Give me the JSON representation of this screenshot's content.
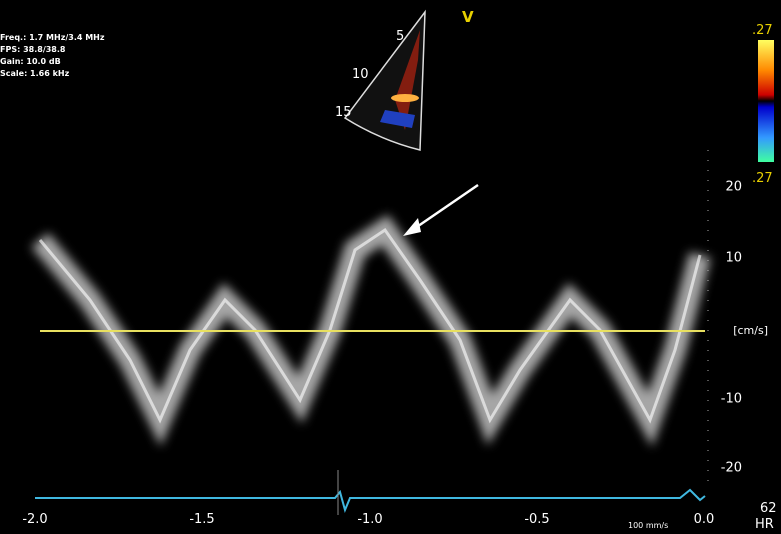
{
  "settings": {
    "freq": "Freq.: 1.7 MHz/3.4 MHz",
    "fps": "FPS: 38.8/38.8",
    "gain": "Gain: 10.0 dB",
    "scale": "Scale: 1.66 kHz"
  },
  "sector": {
    "marker": "V",
    "depths": [
      "5",
      "10",
      "15"
    ]
  },
  "color_scale": {
    "top": ".27",
    "bottom": ".27"
  },
  "velocity_axis": {
    "labels": [
      "20",
      "10",
      "-10",
      "-20"
    ],
    "unit": "[cm/s]"
  },
  "time_axis": {
    "labels": [
      "-2.0",
      "-1.5",
      "-1.0",
      "-0.5",
      "0.0"
    ],
    "sweep": "100 mm/s"
  },
  "heart_rate": {
    "value": "62",
    "label": "HR"
  }
}
